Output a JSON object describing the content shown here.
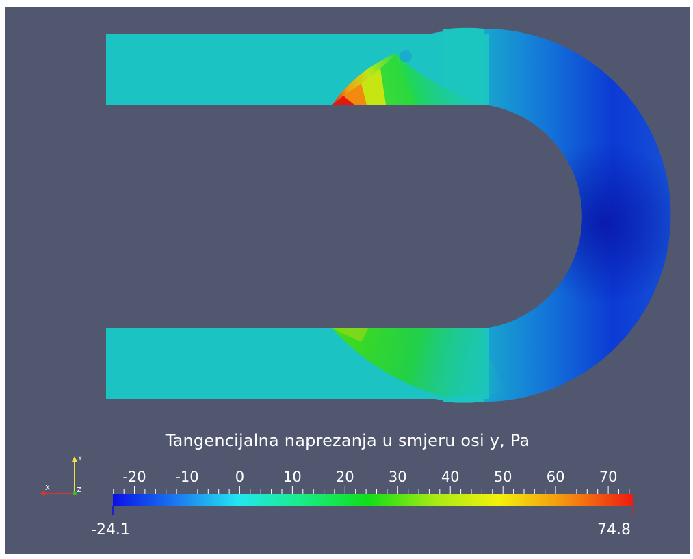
{
  "colorbar": {
    "title": "Tangencijalna naprezanja u smjeru osi y, Pa",
    "min_label": "-24.1",
    "max_label": "74.8",
    "min": -24.1,
    "max": 74.8,
    "ticks": [
      "-20",
      "-10",
      "0",
      "10",
      "20",
      "30",
      "40",
      "50",
      "60",
      "70"
    ],
    "tick_values": [
      -20,
      -10,
      0,
      10,
      20,
      30,
      40,
      50,
      60,
      70
    ]
  },
  "axes_triad": {
    "x_label": "X",
    "y_label": "Y",
    "z_label": "Z"
  },
  "colors": {
    "background": "#525770",
    "pipe_base": "#1bc4c2",
    "colormap": [
      "#0a10e8",
      "#1a8bf0",
      "#22e6f0",
      "#1aec8a",
      "#11dd18",
      "#c8ee18",
      "#f2f20c",
      "#f59010",
      "#ee1a12"
    ]
  }
}
